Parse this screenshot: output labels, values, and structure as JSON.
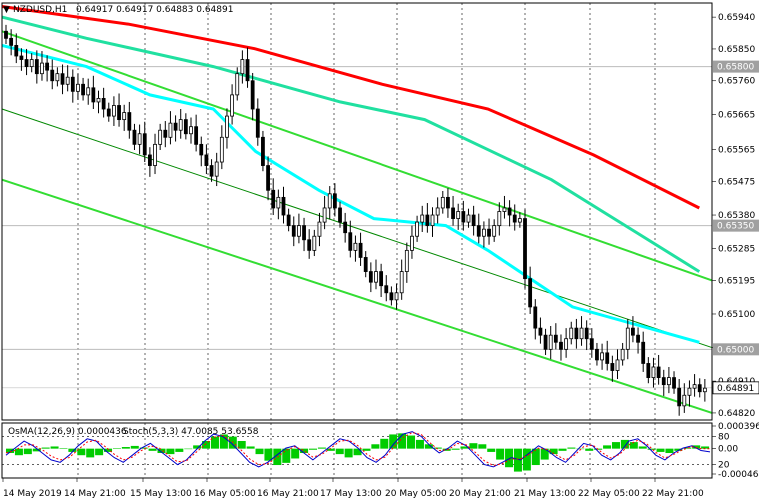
{
  "header": {
    "symbol_label": "NZDUSD,H1",
    "ohlc": "0.64917 0.64917 0.64883 0.64891",
    "indicator_label": "OsMA(12,26,9) 0.0000436",
    "stoch_label": "Stoch(5,3,3) 47.0085 53.6558"
  },
  "chart_data": {
    "type": "candlestick",
    "symbol": "NZDUSD",
    "timeframe": "H1",
    "price_axis": {
      "ticks": [
        "0.65940",
        "0.65850",
        "0.65760",
        "0.65665",
        "0.65565",
        "0.65475",
        "0.65380",
        "0.65285",
        "0.65195",
        "0.65100",
        "0.65005",
        "0.64910",
        "0.64820"
      ],
      "ylim": [
        0.648,
        0.6598
      ]
    },
    "price_tags": [
      {
        "label": "0.65800",
        "value": 0.658,
        "kind": "level"
      },
      {
        "label": "0.65350",
        "value": 0.6535,
        "kind": "level"
      },
      {
        "label": "0.65000",
        "value": 0.65,
        "kind": "level"
      },
      {
        "label": "0.64891",
        "value": 0.64891,
        "kind": "current"
      }
    ],
    "time_axis": [
      "14 May 2019",
      "14 May 21:00",
      "15 May 13:00",
      "16 May 05:00",
      "16 May 21:00",
      "17 May 13:00",
      "20 May 05:00",
      "20 May 21:00",
      "21 May 13:00",
      "22 May 05:00",
      "22 May 21:00"
    ],
    "closes": [
      0.6588,
      0.6586,
      0.6583,
      0.6582,
      0.658,
      0.6582,
      0.6578,
      0.6581,
      0.6579,
      0.6576,
      0.6578,
      0.6575,
      0.6577,
      0.6573,
      0.6575,
      0.6572,
      0.6574,
      0.657,
      0.6571,
      0.6568,
      0.6566,
      0.6569,
      0.6565,
      0.6567,
      0.6562,
      0.6558,
      0.6561,
      0.6555,
      0.6552,
      0.6558,
      0.6562,
      0.656,
      0.6564,
      0.6562,
      0.6565,
      0.6561,
      0.6563,
      0.6558,
      0.6555,
      0.6552,
      0.6549,
      0.6553,
      0.656,
      0.6566,
      0.6572,
      0.6578,
      0.6582,
      0.6576,
      0.6568,
      0.656,
      0.6552,
      0.6545,
      0.654,
      0.6543,
      0.6538,
      0.6535,
      0.6532,
      0.6535,
      0.6531,
      0.6528,
      0.6532,
      0.6536,
      0.654,
      0.6544,
      0.654,
      0.6536,
      0.6533,
      0.6528,
      0.653,
      0.6526,
      0.6522,
      0.6519,
      0.6522,
      0.6518,
      0.6516,
      0.6514,
      0.6516,
      0.6522,
      0.6528,
      0.6532,
      0.6536,
      0.6538,
      0.6535,
      0.6538,
      0.654,
      0.6543,
      0.654,
      0.6537,
      0.6539,
      0.6536,
      0.6538,
      0.6535,
      0.6532,
      0.6534,
      0.6532,
      0.6535,
      0.6539,
      0.654,
      0.6538,
      0.6536,
      0.6537,
      0.652,
      0.6512,
      0.6506,
      0.6504,
      0.65,
      0.6504,
      0.6502,
      0.65,
      0.6503,
      0.6506,
      0.6503,
      0.6506,
      0.6503,
      0.65,
      0.6497,
      0.6499,
      0.6496,
      0.6494,
      0.6497,
      0.65,
      0.6506,
      0.6504,
      0.6502,
      0.6496,
      0.6492,
      0.6495,
      0.6492,
      0.649,
      0.6492,
      0.6489,
      0.6484,
      0.6487,
      0.6489,
      0.649,
      0.6488,
      0.6489
    ],
    "moving_averages": [
      {
        "color": "#ff0000",
        "points": [
          [
            0,
            0.6597
          ],
          [
            30,
            0.6592
          ],
          [
            60,
            0.6585
          ],
          [
            90,
            0.6575
          ],
          [
            115,
            0.6568
          ],
          [
            140,
            0.6555
          ],
          [
            165,
            0.654
          ]
        ]
      },
      {
        "color": "#20e0a0",
        "points": [
          [
            0,
            0.6594
          ],
          [
            20,
            0.6588
          ],
          [
            50,
            0.658
          ],
          [
            80,
            0.657
          ],
          [
            100,
            0.6565
          ],
          [
            130,
            0.6548
          ],
          [
            165,
            0.6522
          ]
        ]
      },
      {
        "color": "#00ffff",
        "points": [
          [
            0,
            0.6586
          ],
          [
            20,
            0.658
          ],
          [
            35,
            0.6572
          ],
          [
            50,
            0.6568
          ],
          [
            60,
            0.6556
          ],
          [
            75,
            0.6545
          ],
          [
            88,
            0.6537
          ],
          [
            105,
            0.6535
          ],
          [
            115,
            0.6528
          ],
          [
            135,
            0.6512
          ],
          [
            165,
            0.6502
          ]
        ]
      }
    ],
    "channel_lines": [
      {
        "color": "#33dd33",
        "width": 2,
        "from": [
          0,
          0.659
        ],
        "to": [
          168,
          0.65195
        ]
      },
      {
        "color": "#33dd33",
        "width": 2,
        "from": [
          0,
          0.6548
        ],
        "to": [
          168,
          0.6482
        ]
      },
      {
        "color": "#008800",
        "width": 1,
        "from": [
          0,
          0.6568
        ],
        "to": [
          168,
          0.65005
        ]
      }
    ],
    "oscillator": {
      "ticks": [
        "0.0003962",
        "80",
        "0.00",
        "20",
        "-0.000464"
      ],
      "osma": [
        -8e-05,
        -0.00012,
        -0.0001,
        -5e-05,
        2e-05,
        4e-05,
        1e-05,
        -6e-05,
        -0.00012,
        -0.00016,
        -0.00012,
        -6e-05,
        1e-05,
        3e-05,
        5e-05,
        2e-05,
        -4e-05,
        -8e-05,
        -0.0001,
        -6e-05,
        0.0,
        6e-05,
        0.00014,
        0.00022,
        0.00026,
        0.00022,
        0.00014,
        4e-05,
        -0.0001,
        -0.00022,
        -0.0003,
        -0.00026,
        -0.00018,
        -8e-05,
        -2e-05,
        2e-05,
        -4e-05,
        -0.0001,
        -0.00016,
        -0.00012,
        -4e-05,
        8e-05,
        0.00018,
        0.00026,
        0.00028,
        0.00024,
        0.00016,
        8e-05,
        2e-05,
        -4e-05,
        -2e-05,
        4e-05,
        0.0001,
        8e-05,
        -6e-05,
        -0.0002,
        -0.00034,
        -0.00042,
        -0.0004,
        -0.0003,
        -0.0002,
        -0.0001,
        -4e-05,
        2e-05,
        0.0,
        -4e-05,
        -2e-05,
        6e-05,
        0.00012,
        0.00016,
        0.00012,
        4e-05,
        -2e-05,
        -6e-05,
        -8e-05,
        -4e-05,
        2e-05,
        6e-05,
        4e-05
      ],
      "stoch_main": [
        40,
        55,
        70,
        60,
        45,
        30,
        25,
        40,
        60,
        75,
        70,
        50,
        35,
        25,
        40,
        55,
        65,
        50,
        35,
        20,
        30,
        50,
        70,
        85,
        80,
        65,
        45,
        25,
        15,
        25,
        40,
        55,
        60,
        45,
        30,
        45,
        60,
        75,
        70,
        55,
        35,
        25,
        40,
        65,
        85,
        90,
        80,
        60,
        45,
        55,
        70,
        60,
        40,
        20,
        15,
        25,
        35,
        30,
        45,
        60,
        50,
        35,
        25,
        45,
        65,
        60,
        40,
        30,
        45,
        70,
        75,
        60,
        40,
        30,
        45,
        55,
        60,
        50,
        47
      ],
      "stoch_signal": [
        45,
        50,
        62,
        62,
        52,
        38,
        30,
        35,
        52,
        68,
        72,
        58,
        42,
        30,
        36,
        50,
        60,
        55,
        40,
        26,
        28,
        45,
        62,
        78,
        82,
        70,
        52,
        32,
        20,
        22,
        35,
        50,
        58,
        50,
        36,
        42,
        55,
        70,
        72,
        60,
        42,
        30,
        36,
        58,
        78,
        88,
        84,
        66,
        50,
        52,
        65,
        62,
        46,
        28,
        18,
        22,
        32,
        32,
        42,
        55,
        52,
        40,
        30,
        40,
        58,
        62,
        46,
        34,
        42,
        62,
        72,
        64,
        46,
        34,
        42,
        52,
        58,
        54,
        53.6558
      ]
    }
  }
}
